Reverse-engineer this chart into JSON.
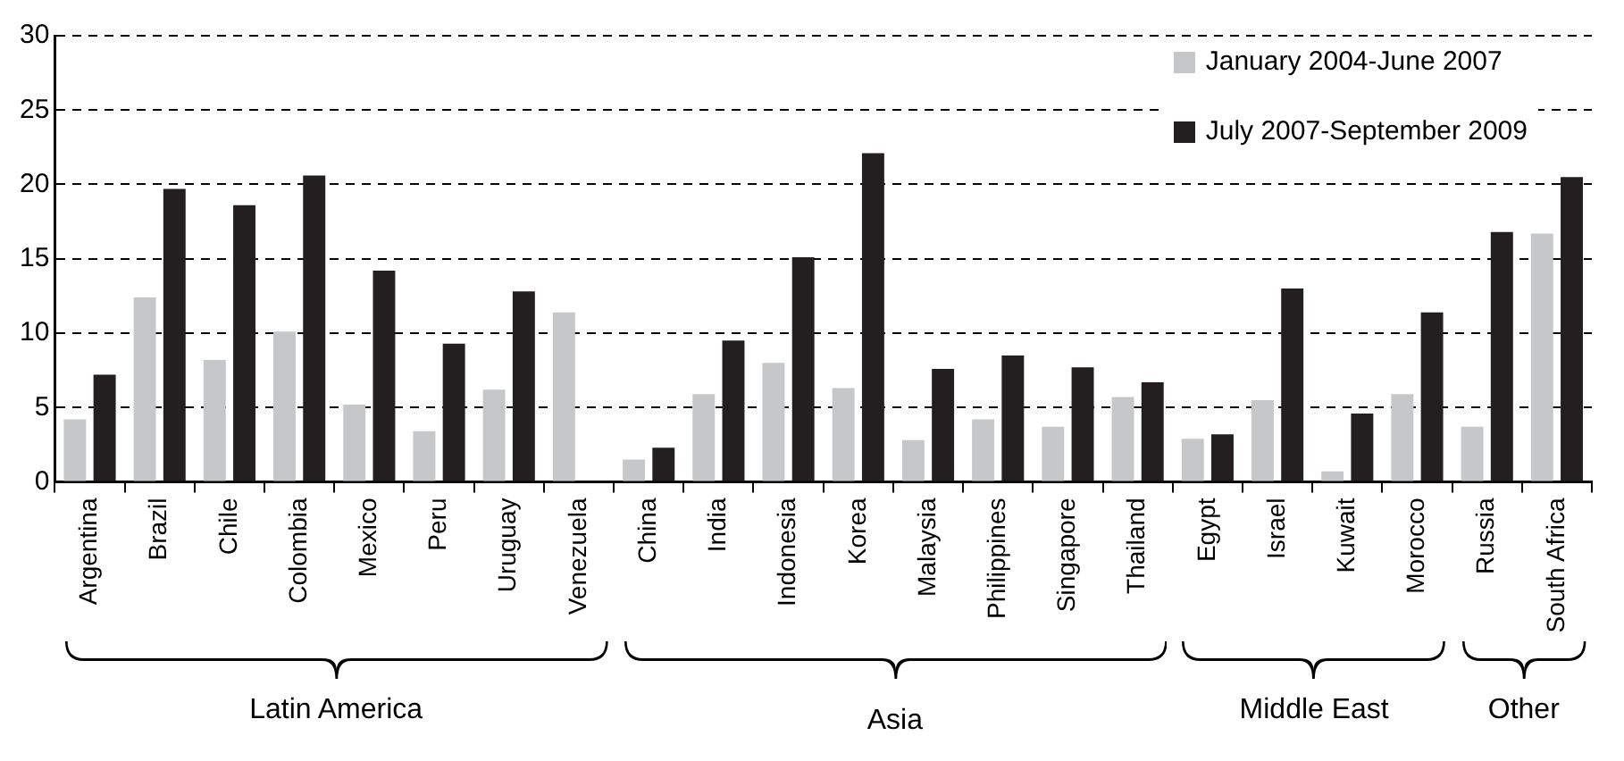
{
  "chart_data": {
    "type": "bar",
    "categories": [
      "Argentina",
      "Brazil",
      "Chile",
      "Colombia",
      "Mexico",
      "Peru",
      "Uruguay",
      "Venezuela",
      "China",
      "India",
      "Indonesia",
      "Korea",
      "Malaysia",
      "Philippines",
      "Singapore",
      "Thailand",
      "Egypt",
      "Israel",
      "Kuwait",
      "Morocco",
      "Russia",
      "South Africa"
    ],
    "series": [
      {
        "name": "January 2004-June 2007",
        "color": "#c6c7c9",
        "values": [
          4.2,
          12.4,
          8.2,
          10.1,
          5.2,
          3.4,
          6.2,
          11.4,
          1.5,
          5.9,
          8.0,
          6.3,
          2.8,
          4.2,
          3.7,
          5.7,
          2.9,
          5.5,
          0.7,
          5.9,
          3.7,
          16.7
        ]
      },
      {
        "name": "July 2007-September 2009",
        "color": "#231f20",
        "values": [
          7.2,
          19.7,
          18.6,
          20.6,
          14.2,
          9.3,
          12.8,
          null,
          2.3,
          9.5,
          15.1,
          22.1,
          7.6,
          8.5,
          7.7,
          6.7,
          3.2,
          13.0,
          4.6,
          11.4,
          16.8,
          20.5
        ]
      }
    ],
    "ylim": [
      0,
      30
    ],
    "yticks": [
      0,
      5,
      10,
      15,
      20,
      25,
      30
    ],
    "grid": "y",
    "legend": "top right",
    "annotations": [
      "Latin America",
      "Asia",
      "Middle East",
      "Other"
    ]
  }
}
